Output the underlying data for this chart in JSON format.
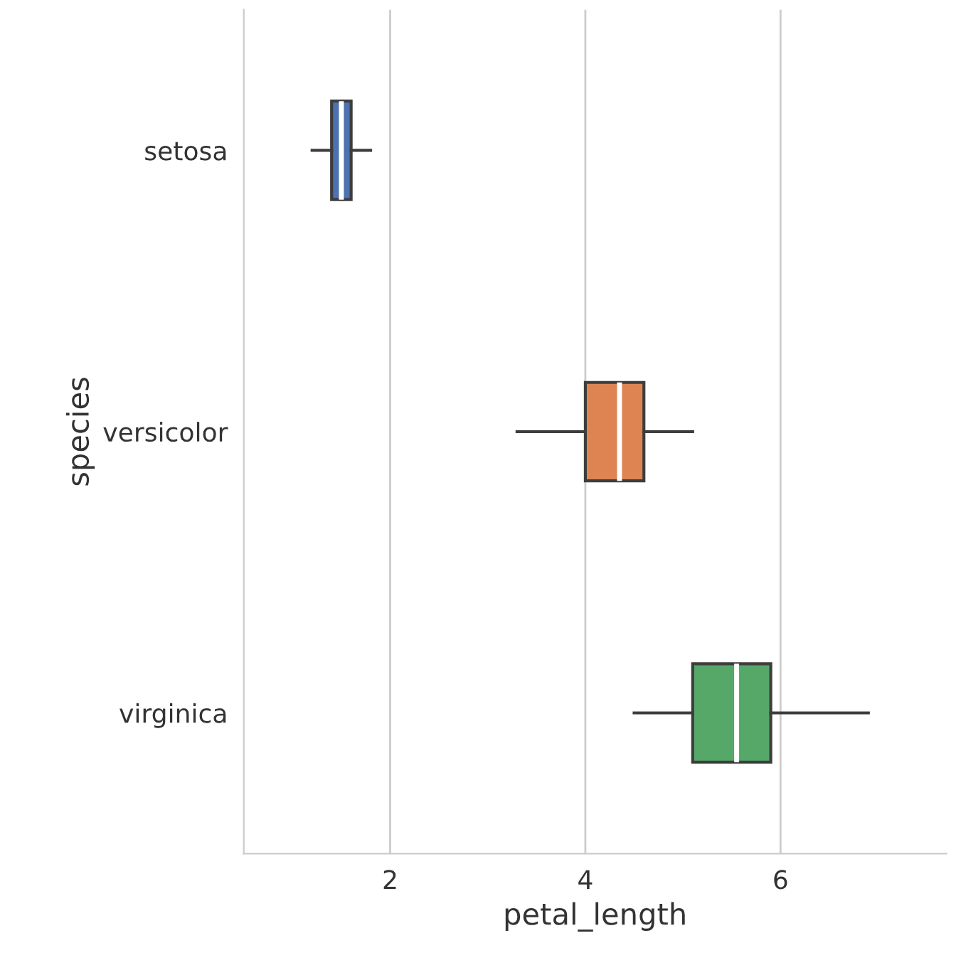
{
  "chart_data": {
    "type": "box",
    "orientation": "horizontal",
    "xlabel": "petal_length",
    "ylabel": "species",
    "categories": [
      "setosa",
      "versicolor",
      "virginica"
    ],
    "colors": [
      "#4c72b0",
      "#dd8452",
      "#55a868"
    ],
    "boxes": [
      {
        "low": 1.2,
        "q1": 1.4,
        "median": 1.5,
        "q3": 1.6,
        "high": 1.8
      },
      {
        "low": 3.3,
        "q1": 4.0,
        "median": 4.35,
        "q3": 4.6,
        "high": 5.1
      },
      {
        "low": 4.5,
        "q1": 5.1,
        "median": 5.55,
        "q3": 5.9,
        "high": 6.9
      }
    ],
    "xlim": [
      0.5,
      7.7
    ],
    "xticks": [
      2,
      4,
      6
    ],
    "grid": "x"
  }
}
